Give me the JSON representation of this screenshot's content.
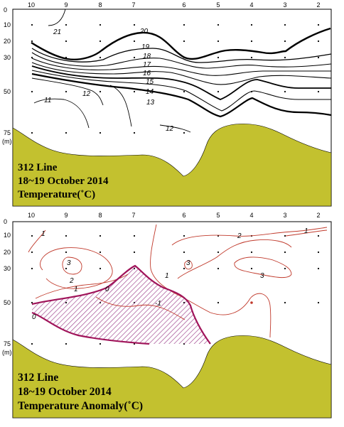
{
  "chart_data": [
    {
      "type": "contour",
      "panel": "top",
      "title_lines": [
        "312 Line",
        "18~19 October 2014",
        "Temperature(˚C)"
      ],
      "x_tick_labels": [
        "10",
        "9",
        "8",
        "7",
        "6",
        "5",
        "4",
        "3",
        "2"
      ],
      "y_tick_labels": [
        "0",
        "10",
        "20",
        "30",
        "50",
        "75"
      ],
      "y_unit": "(m)",
      "contour_labels": [
        "21",
        "20",
        "19",
        "18",
        "17",
        "16",
        "15",
        "14",
        "13",
        "12",
        "11",
        "12"
      ],
      "colors": {
        "lines": "#000000",
        "bottom": "#c3c12f"
      }
    },
    {
      "type": "contour",
      "panel": "bottom",
      "title_lines": [
        "312 Line",
        "18~19 October 2014",
        "Temperature Anomaly(˚C)"
      ],
      "x_tick_labels": [
        "10",
        "9",
        "8",
        "7",
        "6",
        "5",
        "4",
        "3",
        "2"
      ],
      "y_tick_labels": [
        "0",
        "10",
        "20",
        "30",
        "50",
        "75"
      ],
      "y_unit": "(m)",
      "contour_labels": [
        "1",
        "3",
        "2",
        "1",
        "0",
        "-1",
        "0",
        "1",
        "3",
        "2",
        "1",
        "3"
      ],
      "colors": {
        "lines": "#c0392b",
        "zero_line": "#a0145a",
        "hatch": "#9b3e8a",
        "bottom": "#c3c12f"
      }
    }
  ]
}
